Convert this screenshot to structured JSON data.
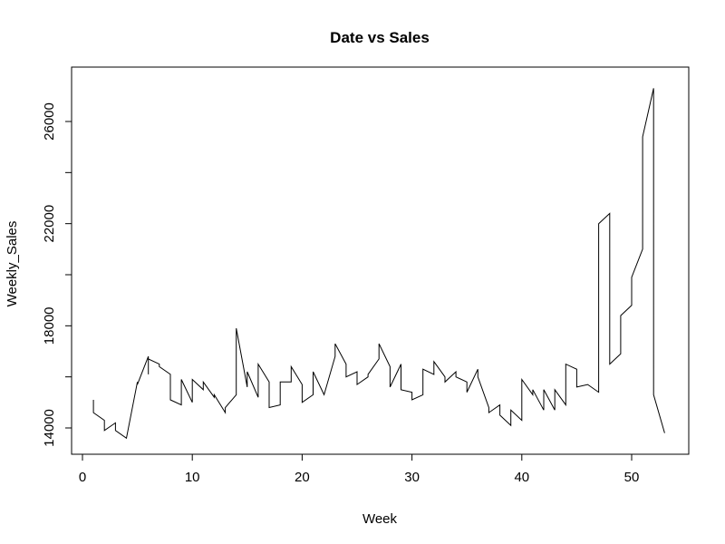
{
  "chart_data": {
    "type": "line",
    "title": "Date vs Sales",
    "xlabel": "Week",
    "ylabel": "Weekly_Sales",
    "xlim": [
      0,
      55
    ],
    "ylim": [
      13000,
      28000
    ],
    "xticks": [
      0,
      10,
      20,
      30,
      40,
      50
    ],
    "yticks": [
      14000,
      18000,
      22000,
      26000
    ],
    "grid": false,
    "legend": "none",
    "line_color": "#000000",
    "series": [
      {
        "x": [
          1,
          1,
          2,
          2,
          3,
          3,
          4,
          5,
          5,
          6,
          6,
          6,
          7,
          7,
          8,
          8,
          9,
          9,
          10,
          10,
          11,
          11,
          12,
          12,
          13,
          13,
          14,
          14,
          14,
          15,
          15,
          16,
          16,
          17,
          17,
          18,
          18,
          19,
          19,
          20,
          20,
          21,
          21,
          22,
          23,
          23,
          24,
          24,
          25,
          25,
          26,
          26,
          27,
          27,
          28,
          28,
          29,
          29,
          30,
          30,
          31,
          31,
          32,
          32,
          33,
          33,
          34,
          34,
          35,
          35,
          36,
          36,
          37,
          37,
          38,
          38,
          39,
          39,
          40,
          40,
          41,
          41,
          42,
          42,
          43,
          43,
          44,
          44,
          45,
          45,
          46,
          47,
          47,
          48,
          48,
          49,
          49,
          50,
          50,
          51,
          51,
          52,
          52,
          53
        ],
        "y": [
          15100,
          14600,
          14300,
          13900,
          14200,
          13900,
          13600,
          15800,
          15700,
          16800,
          16100,
          16700,
          16500,
          16400,
          16100,
          15100,
          14900,
          15900,
          15000,
          15900,
          15500,
          15800,
          15200,
          15300,
          14600,
          14800,
          15300,
          17200,
          17900,
          15600,
          16200,
          15200,
          16500,
          15800,
          14800,
          14900,
          15800,
          15800,
          16400,
          15700,
          15000,
          15300,
          16200,
          15300,
          16800,
          17300,
          16500,
          16000,
          16200,
          15700,
          16000,
          16100,
          16700,
          17300,
          16400,
          15600,
          16500,
          15500,
          15400,
          15100,
          15300,
          16300,
          16100,
          16600,
          16000,
          15800,
          16200,
          16000,
          15800,
          15400,
          16300,
          16000,
          14800,
          14600,
          14900,
          14500,
          14100,
          14700,
          14300,
          15900,
          15300,
          15500,
          14700,
          15500,
          14700,
          15500,
          14900,
          16500,
          16300,
          15600,
          15700,
          15400,
          22000,
          22400,
          16500,
          16900,
          18400,
          18800,
          19900,
          21000,
          25400,
          27300,
          15300,
          13800
        ]
      }
    ]
  }
}
